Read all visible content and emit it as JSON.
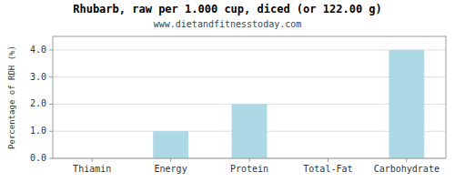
{
  "chart_data": {
    "type": "bar",
    "title": "Rhubarb, raw per 1.000 cup, diced (or 122.00 g)",
    "subtitle": "www.dietandfitnesstoday.com",
    "categories": [
      "Thiamin",
      "Energy",
      "Protein",
      "Total-Fat",
      "Carbohydrate"
    ],
    "values": [
      0.0,
      1.0,
      2.0,
      0.0,
      4.0
    ],
    "color": "#add8e6",
    "ylabel": "Percentage of RDH (%)",
    "ylim": [
      0,
      4.5
    ],
    "yticks": [
      {
        "value": 0.0,
        "label": "0.0"
      },
      {
        "value": 1.0,
        "label": "1.0"
      },
      {
        "value": 2.0,
        "label": "2.0"
      },
      {
        "value": 3.0,
        "label": "3.0"
      },
      {
        "value": 4.0,
        "label": "4.0"
      }
    ],
    "grid": true
  }
}
